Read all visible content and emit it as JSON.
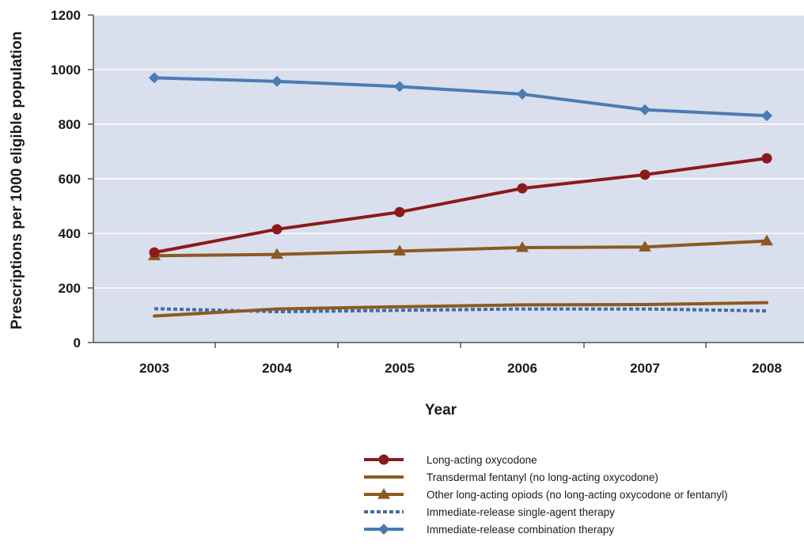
{
  "chart_data": {
    "type": "line",
    "title": "",
    "xlabel": "Year",
    "ylabel": "Prescriptions per 1000 eligible population",
    "categories": [
      "2003",
      "2004",
      "2005",
      "2006",
      "2007",
      "2008"
    ],
    "ylim": [
      0,
      1200
    ],
    "yticks": [
      0,
      200,
      400,
      600,
      800,
      1000,
      1200
    ],
    "grid": true,
    "legend_position": "bottom-right",
    "plot_background": "#d9dfec",
    "series": [
      {
        "name": "Long-acting oxycodone",
        "values": [
          330,
          415,
          478,
          565,
          615,
          675
        ],
        "color": "#8b1a1a",
        "marker": "circle",
        "dash": "solid"
      },
      {
        "name": "Transdermal fentanyl (no long-acting oxycodone)",
        "values": [
          97,
          123,
          131,
          138,
          139,
          146
        ],
        "color": "#8b5a22",
        "marker": "none",
        "dash": "solid"
      },
      {
        "name": "Other long-acting opiods (no long-acting oxycodone or fentanyl)",
        "values": [
          318,
          323,
          335,
          348,
          350,
          372
        ],
        "color": "#8b5a22",
        "marker": "triangle",
        "dash": "solid"
      },
      {
        "name": "Immediate-release single-agent therapy",
        "values": [
          124,
          113,
          118,
          123,
          123,
          116
        ],
        "color": "#3e6ea8",
        "marker": "none",
        "dash": "dotted"
      },
      {
        "name": "Immediate-release combination therapy",
        "values": [
          970,
          957,
          938,
          910,
          853,
          831
        ],
        "color": "#4a7bb5",
        "marker": "diamond",
        "dash": "solid"
      }
    ]
  }
}
